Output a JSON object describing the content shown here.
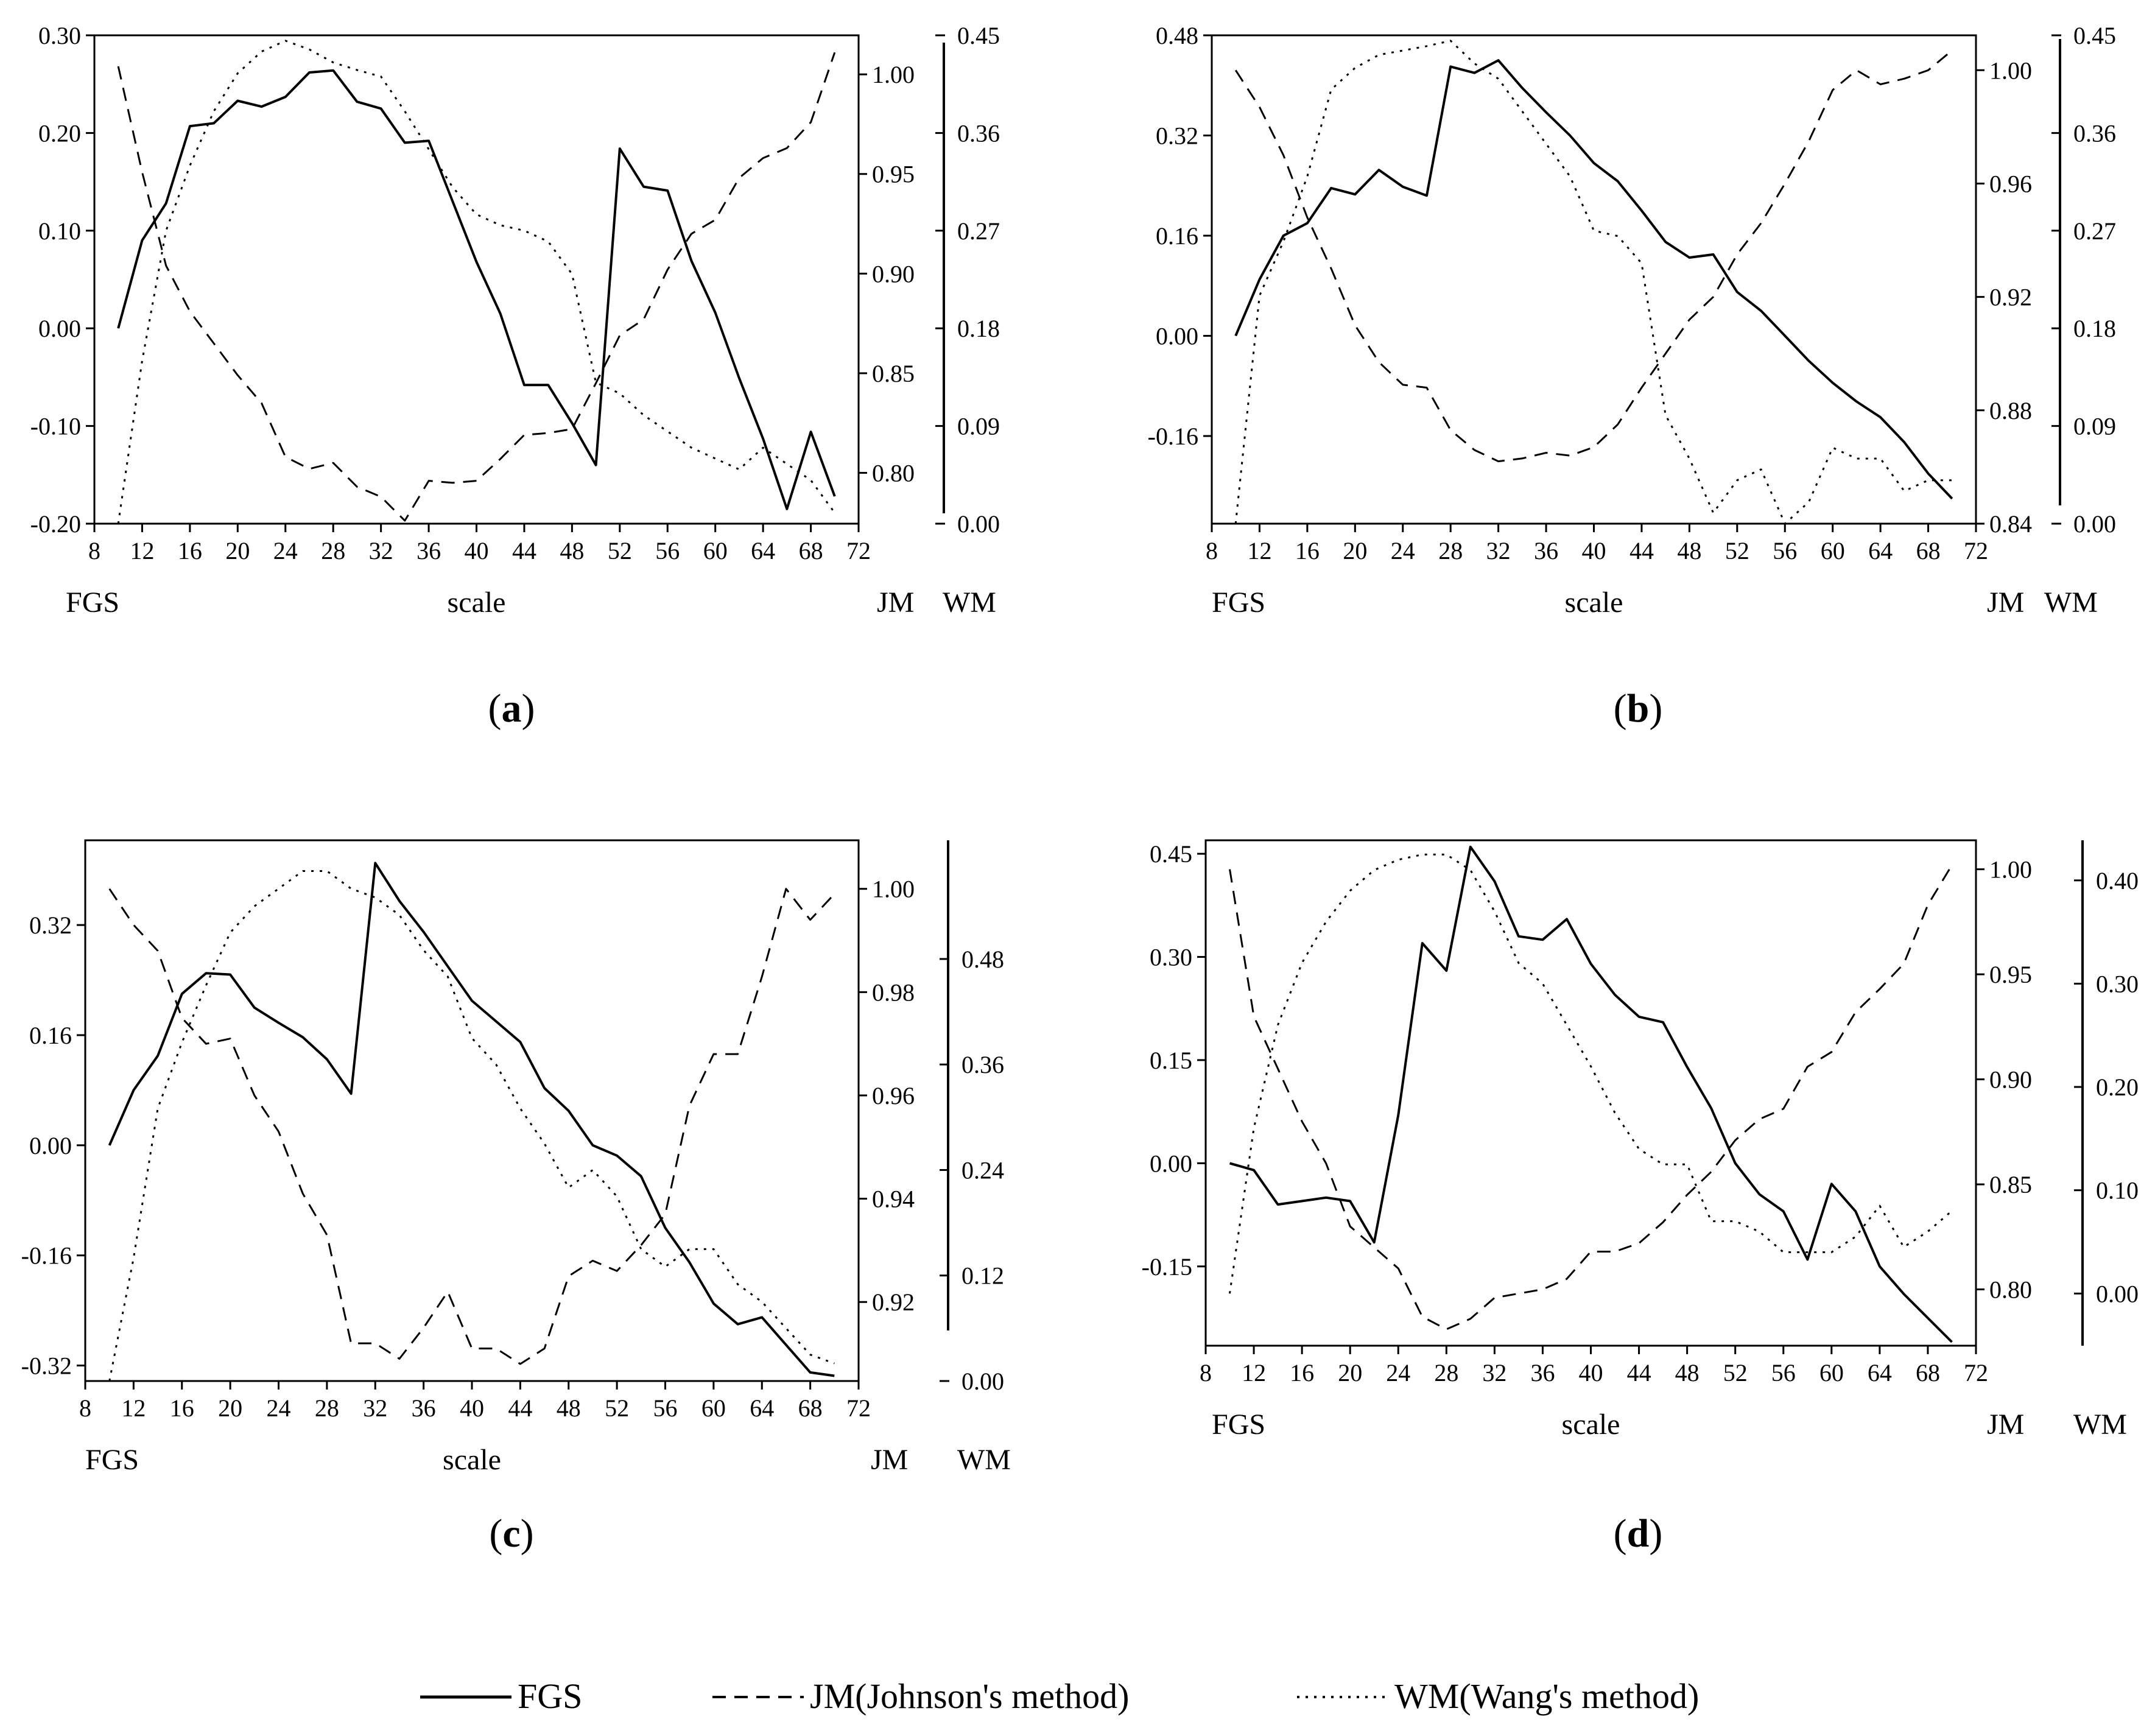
{
  "legend": [
    {
      "key": "fgs",
      "label": "FGS",
      "style": "solid"
    },
    {
      "key": "jm",
      "label": "JM(Johnson's method)",
      "style": "dashed"
    },
    {
      "key": "wm",
      "label": "WM(Wang's method)",
      "style": "dotted"
    }
  ],
  "line_color": "#000000",
  "chart_data": [
    {
      "type": "line",
      "panel_label": "a",
      "xlabel": "scale",
      "axis_names": {
        "left": "FGS",
        "right1": "JM",
        "right2": "WM"
      },
      "xlim": [
        8,
        72
      ],
      "xticks": [
        "8",
        "12",
        "16",
        "20",
        "24",
        "28",
        "32",
        "36",
        "40",
        "44",
        "48",
        "52",
        "56",
        "60",
        "64",
        "68",
        "72"
      ],
      "axes": {
        "left": {
          "lim": [
            -0.2,
            0.3
          ],
          "ticks": [
            "-0.20",
            "-0.10",
            "0.00",
            "0.10",
            "0.20",
            "0.30"
          ]
        },
        "right1": {
          "lim": [
            0.7745,
            1.0196
          ],
          "ticks": [
            "0.80",
            "0.85",
            "0.90",
            "0.95",
            "1.00"
          ]
        },
        "right2": {
          "lim": [
            0.0,
            0.45
          ],
          "ticks": [
            "0.00",
            "0.09",
            "0.18",
            "0.27",
            "0.36",
            "0.45"
          ]
        }
      },
      "x": [
        10,
        12,
        14,
        16,
        18,
        20,
        22,
        24,
        26,
        28,
        30,
        32,
        34,
        36,
        38,
        40,
        42,
        44,
        46,
        48,
        50,
        52,
        54,
        56,
        58,
        60,
        62,
        64,
        66,
        68,
        70
      ],
      "series": [
        {
          "name": "FGS",
          "axis": "left",
          "style": "solid",
          "values": [
            0.0,
            0.09,
            0.128,
            0.207,
            0.21,
            0.233,
            0.227,
            0.237,
            0.262,
            0.264,
            0.232,
            0.225,
            0.19,
            0.192,
            0.13,
            0.068,
            0.015,
            -0.058,
            -0.058,
            -0.097,
            -0.14,
            0.184,
            0.145,
            0.141,
            0.069,
            0.016,
            -0.051,
            -0.113,
            -0.185,
            -0.106,
            -0.172
          ]
        },
        {
          "name": "JM(Johnson's method)",
          "axis": "right1",
          "style": "dashed",
          "values": [
            1.004,
            0.951,
            0.904,
            0.881,
            0.865,
            0.849,
            0.835,
            0.808,
            0.802,
            0.805,
            0.793,
            0.788,
            0.776,
            0.796,
            0.795,
            0.796,
            0.807,
            0.819,
            0.82,
            0.822,
            0.845,
            0.869,
            0.877,
            0.902,
            0.92,
            0.927,
            0.948,
            0.958,
            0.963,
            0.976,
            1.011
          ]
        },
        {
          "name": "WM(Wang's method)",
          "axis": "right2",
          "style": "dotted",
          "values": [
            0.0,
            0.15,
            0.27,
            0.33,
            0.38,
            0.415,
            0.435,
            0.445,
            0.437,
            0.425,
            0.418,
            0.412,
            0.38,
            0.345,
            0.31,
            0.285,
            0.275,
            0.27,
            0.26,
            0.23,
            0.13,
            0.12,
            0.1,
            0.085,
            0.07,
            0.06,
            0.05,
            0.07,
            0.055,
            0.04,
            0.01
          ]
        }
      ]
    },
    {
      "type": "line",
      "panel_label": "b",
      "xlabel": "scale",
      "axis_names": {
        "left": "FGS",
        "right1": "JM",
        "right2": "WM"
      },
      "xlim": [
        8,
        72
      ],
      "xticks": [
        "8",
        "12",
        "16",
        "20",
        "24",
        "28",
        "32",
        "36",
        "40",
        "44",
        "48",
        "52",
        "56",
        "60",
        "64",
        "68",
        "72"
      ],
      "axes": {
        "left": {
          "lim": [
            -0.3,
            0.48
          ],
          "ticks": [
            "-0.16",
            "0.00",
            "0.16",
            "0.32",
            "0.48"
          ]
        },
        "right1": {
          "lim": [
            0.84,
            1.0123
          ],
          "ticks": [
            "0.84",
            "0.88",
            "0.92",
            "0.96",
            "1.00"
          ]
        },
        "right2": {
          "lim": [
            0.0,
            0.45
          ],
          "ticks": [
            "0.00",
            "0.09",
            "0.18",
            "0.27",
            "0.36",
            "0.45"
          ]
        }
      },
      "x": [
        10,
        12,
        14,
        16,
        18,
        20,
        22,
        24,
        26,
        28,
        30,
        32,
        34,
        36,
        38,
        40,
        42,
        44,
        46,
        48,
        50,
        52,
        54,
        56,
        58,
        60,
        62,
        64,
        66,
        68,
        70
      ],
      "series": [
        {
          "name": "FGS",
          "axis": "left",
          "style": "solid",
          "values": [
            0.0,
            0.09,
            0.16,
            0.18,
            0.236,
            0.226,
            0.265,
            0.238,
            0.224,
            0.43,
            0.42,
            0.44,
            0.396,
            0.357,
            0.32,
            0.276,
            0.247,
            0.2,
            0.15,
            0.125,
            0.13,
            0.07,
            0.04,
            0.0,
            -0.04,
            -0.075,
            -0.105,
            -0.13,
            -0.17,
            -0.22,
            -0.26
          ]
        },
        {
          "name": "JM(Johnson's method)",
          "axis": "right1",
          "style": "dashed",
          "values": [
            1.0,
            0.987,
            0.97,
            0.948,
            0.93,
            0.91,
            0.897,
            0.889,
            0.888,
            0.873,
            0.866,
            0.862,
            0.863,
            0.865,
            0.864,
            0.867,
            0.875,
            0.888,
            0.9,
            0.912,
            0.92,
            0.935,
            0.946,
            0.96,
            0.975,
            0.993,
            1.0,
            0.995,
            0.997,
            1.0,
            1.007
          ]
        },
        {
          "name": "WM(Wang's method)",
          "axis": "right2",
          "style": "dotted",
          "values": [
            0.0,
            0.21,
            0.26,
            0.32,
            0.4,
            0.42,
            0.432,
            0.436,
            0.44,
            0.445,
            0.424,
            0.41,
            0.38,
            0.35,
            0.32,
            0.27,
            0.265,
            0.24,
            0.1,
            0.06,
            0.01,
            0.04,
            0.05,
            0.0,
            0.02,
            0.07,
            0.06,
            0.06,
            0.03,
            0.04,
            0.04
          ]
        }
      ]
    },
    {
      "type": "line",
      "panel_label": "c",
      "xlabel": "scale",
      "axis_names": {
        "left": "FGS",
        "right1": "JM",
        "right2": "WM"
      },
      "xlim": [
        8,
        72
      ],
      "xticks": [
        "8",
        "12",
        "16",
        "20",
        "24",
        "28",
        "32",
        "36",
        "40",
        "44",
        "48",
        "52",
        "56",
        "60",
        "64",
        "68",
        "72"
      ],
      "axes": {
        "left": {
          "lim": [
            -0.3425,
            0.4431
          ],
          "ticks": [
            "-0.32",
            "-0.16",
            "0.00",
            "0.16",
            "0.32"
          ]
        },
        "right1": {
          "lim": [
            0.9047,
            1.0094
          ],
          "ticks": [
            "0.92",
            "0.94",
            "0.96",
            "0.98",
            "1.00"
          ]
        },
        "right2": {
          "lim": [
            0.0,
            0.615
          ],
          "ticks": [
            "0.00",
            "0.12",
            "0.24",
            "0.36",
            "0.48"
          ]
        }
      },
      "x": [
        10,
        12,
        14,
        16,
        18,
        20,
        22,
        24,
        26,
        28,
        30,
        32,
        34,
        36,
        38,
        40,
        42,
        44,
        46,
        48,
        50,
        52,
        54,
        56,
        58,
        60,
        62,
        64,
        66,
        68,
        70
      ],
      "series": [
        {
          "name": "FGS",
          "axis": "left",
          "style": "solid",
          "values": [
            0.0,
            0.08,
            0.13,
            0.22,
            0.25,
            0.248,
            0.2,
            0.178,
            0.157,
            0.125,
            0.075,
            0.41,
            0.355,
            0.31,
            0.26,
            0.21,
            0.18,
            0.15,
            0.083,
            0.05,
            0.0,
            -0.015,
            -0.045,
            -0.12,
            -0.17,
            -0.23,
            -0.26,
            -0.25,
            -0.29,
            -0.33,
            -0.335
          ]
        },
        {
          "name": "JM(Johnson's method)",
          "axis": "right1",
          "style": "dashed",
          "values": [
            1.0,
            0.993,
            0.988,
            0.975,
            0.97,
            0.971,
            0.96,
            0.953,
            0.941,
            0.933,
            0.912,
            0.912,
            0.909,
            0.915,
            0.922,
            0.911,
            0.911,
            0.908,
            0.911,
            0.925,
            0.928,
            0.926,
            0.931,
            0.937,
            0.958,
            0.968,
            0.968,
            0.983,
            1.0,
            0.994,
            0.999
          ]
        },
        {
          "name": "WM(Wang's method)",
          "axis": "right2",
          "style": "dotted",
          "values": [
            0.0,
            0.14,
            0.31,
            0.385,
            0.45,
            0.51,
            0.54,
            0.56,
            0.58,
            0.58,
            0.56,
            0.55,
            0.53,
            0.49,
            0.46,
            0.39,
            0.36,
            0.31,
            0.27,
            0.22,
            0.24,
            0.21,
            0.15,
            0.13,
            0.15,
            0.15,
            0.11,
            0.09,
            0.06,
            0.03,
            0.02
          ]
        }
      ]
    },
    {
      "type": "line",
      "panel_label": "d",
      "xlabel": "scale",
      "axis_names": {
        "left": "FGS",
        "right1": "JM",
        "right2": "WM"
      },
      "xlim": [
        8,
        72
      ],
      "xticks": [
        "8",
        "12",
        "16",
        "20",
        "24",
        "28",
        "32",
        "36",
        "40",
        "44",
        "48",
        "52",
        "56",
        "60",
        "64",
        "68",
        "72"
      ],
      "axes": {
        "left": {
          "lim": [
            -0.2653,
            0.4696
          ],
          "ticks": [
            "-0.15",
            "0.00",
            "0.15",
            "0.30",
            "0.45"
          ]
        },
        "right1": {
          "lim": [
            0.7732,
            1.0138
          ],
          "ticks": [
            "0.80",
            "0.85",
            "0.90",
            "0.95",
            "1.00"
          ]
        },
        "right2": {
          "lim": [
            -0.0505,
            0.4388
          ],
          "ticks": [
            "0.00",
            "0.10",
            "0.20",
            "0.30",
            "0.40"
          ]
        }
      },
      "x": [
        10,
        12,
        14,
        16,
        18,
        20,
        22,
        24,
        26,
        28,
        30,
        32,
        34,
        36,
        38,
        40,
        42,
        44,
        46,
        48,
        50,
        52,
        54,
        56,
        58,
        60,
        62,
        64,
        66,
        68,
        70
      ],
      "series": [
        {
          "name": "FGS",
          "axis": "left",
          "style": "solid",
          "values": [
            0.0,
            -0.01,
            -0.06,
            -0.055,
            -0.05,
            -0.055,
            -0.115,
            0.07,
            0.32,
            0.28,
            0.46,
            0.41,
            0.33,
            0.325,
            0.355,
            0.29,
            0.245,
            0.213,
            0.205,
            0.14,
            0.08,
            0.0,
            -0.045,
            -0.07,
            -0.14,
            -0.03,
            -0.07,
            -0.15,
            -0.19,
            -0.225,
            -0.26
          ]
        },
        {
          "name": "JM(Johnson's method)",
          "axis": "right1",
          "style": "dashed",
          "values": [
            1.0,
            0.93,
            0.905,
            0.88,
            0.86,
            0.83,
            0.82,
            0.81,
            0.787,
            0.781,
            0.786,
            0.796,
            0.798,
            0.8,
            0.805,
            0.818,
            0.818,
            0.822,
            0.832,
            0.845,
            0.856,
            0.871,
            0.881,
            0.886,
            0.906,
            0.913,
            0.932,
            0.943,
            0.955,
            0.983,
            1.002
          ]
        },
        {
          "name": "WM(Wang's method)",
          "axis": "right2",
          "style": "dotted",
          "values": [
            0.0,
            0.16,
            0.26,
            0.32,
            0.36,
            0.39,
            0.41,
            0.42,
            0.425,
            0.425,
            0.41,
            0.37,
            0.32,
            0.3,
            0.26,
            0.22,
            0.175,
            0.14,
            0.125,
            0.125,
            0.07,
            0.07,
            0.06,
            0.04,
            0.04,
            0.04,
            0.055,
            0.085,
            0.045,
            0.06,
            0.08
          ]
        }
      ]
    }
  ]
}
